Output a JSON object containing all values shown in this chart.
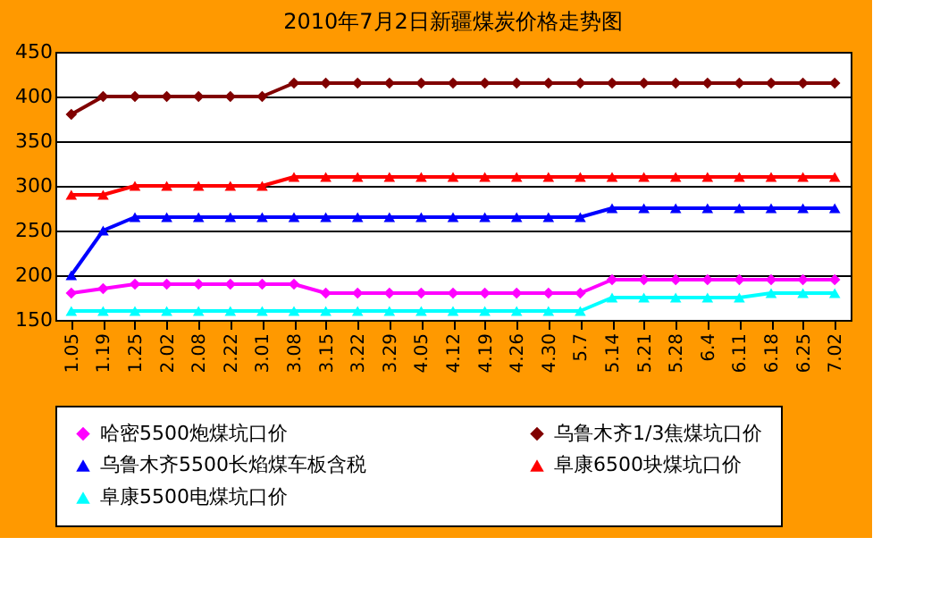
{
  "chart_data": {
    "type": "line",
    "title": "2010年7月2日新疆煤炭价格走势图",
    "categories": [
      "1.05",
      "1.19",
      "1.25",
      "2.02",
      "2.08",
      "2.22",
      "3.01",
      "3.08",
      "3.15",
      "3.22",
      "3.29",
      "4.05",
      "4.12",
      "4.19",
      "4.26",
      "4.30",
      "5.7",
      "5.14",
      "5.21",
      "5.28",
      "6.4",
      "6.11",
      "6.18",
      "6.25",
      "7.02"
    ],
    "series": [
      {
        "name": "哈密5500炮煤坑口价",
        "color": "#ff00ff",
        "marker": "diamond",
        "values": [
          180,
          185,
          190,
          190,
          190,
          190,
          190,
          190,
          180,
          180,
          180,
          180,
          180,
          180,
          180,
          180,
          180,
          195,
          195,
          195,
          195,
          195,
          195,
          195,
          195
        ]
      },
      {
        "name": "乌鲁木齐1/3焦煤坑口价",
        "color": "#800000",
        "marker": "diamond",
        "values": [
          380,
          400,
          400,
          400,
          400,
          400,
          400,
          415,
          415,
          415,
          415,
          415,
          415,
          415,
          415,
          415,
          415,
          415,
          415,
          415,
          415,
          415,
          415,
          415,
          415
        ]
      },
      {
        "name": "乌鲁木齐5500长焰煤车板含税",
        "color": "#0000ff",
        "marker": "triangle",
        "values": [
          200,
          250,
          265,
          265,
          265,
          265,
          265,
          265,
          265,
          265,
          265,
          265,
          265,
          265,
          265,
          265,
          265,
          275,
          275,
          275,
          275,
          275,
          275,
          275,
          275
        ]
      },
      {
        "name": "阜康6500块煤坑口价",
        "color": "#ff0000",
        "marker": "triangle",
        "values": [
          290,
          290,
          300,
          300,
          300,
          300,
          300,
          310,
          310,
          310,
          310,
          310,
          310,
          310,
          310,
          310,
          310,
          310,
          310,
          310,
          310,
          310,
          310,
          310,
          310
        ]
      },
      {
        "name": "阜康5500电煤坑口价",
        "color": "#00ffff",
        "marker": "triangle",
        "values": [
          160,
          160,
          160,
          160,
          160,
          160,
          160,
          160,
          160,
          160,
          160,
          160,
          160,
          160,
          160,
          160,
          160,
          175,
          175,
          175,
          175,
          175,
          180,
          180,
          180
        ]
      }
    ],
    "ylim": [
      150,
      450
    ],
    "yticks": [
      150,
      200,
      250,
      300,
      350,
      400,
      450
    ],
    "grid": "y",
    "legend": "bottom"
  }
}
